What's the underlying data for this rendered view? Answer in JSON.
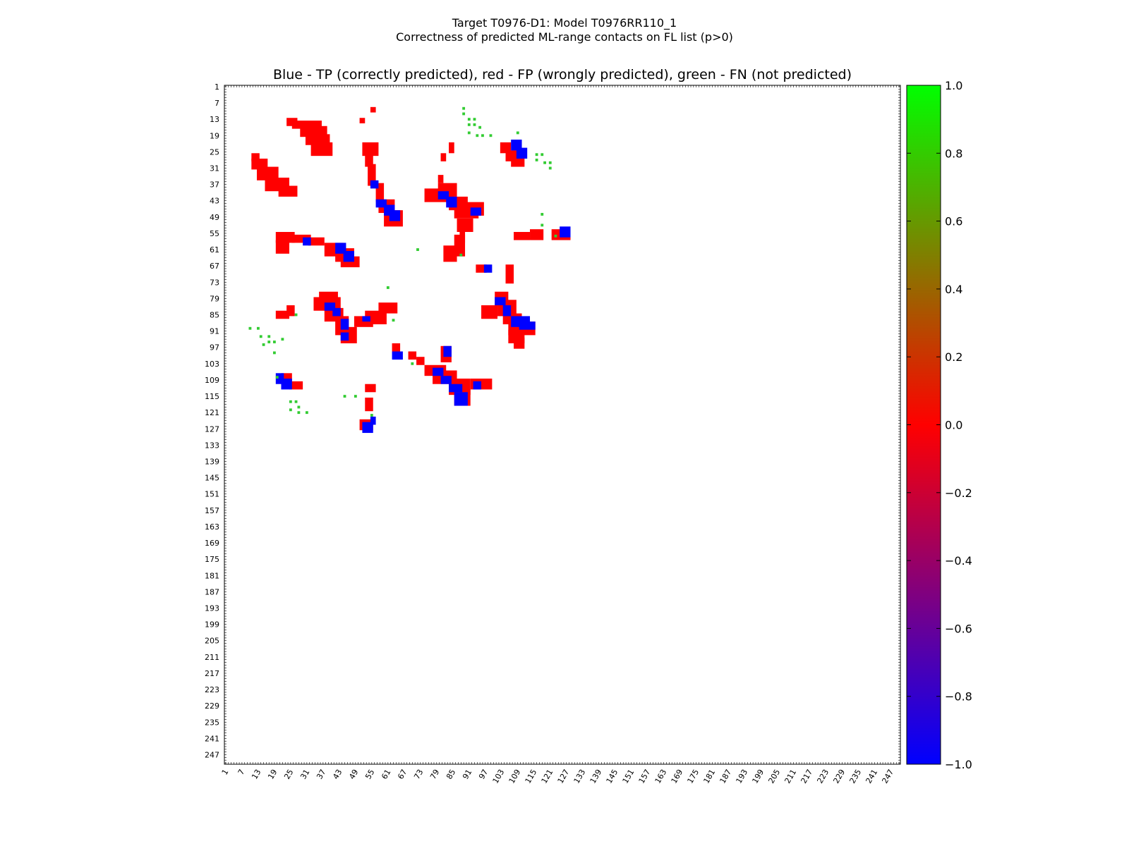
{
  "suptitle_line1": "Target T0976-D1: Model T0976RR110_1",
  "suptitle_line2": "Correctness of predicted ML-range contacts on FL list (p>0)",
  "chart_data": {
    "type": "heatmap",
    "title": "Blue - TP (correctly predicted), red - FP (wrongly predicted), green - FN (not predicted)",
    "xlabel": "",
    "ylabel": "",
    "xlim": [
      1,
      250
    ],
    "ylim": [
      1,
      250
    ],
    "ticks": [
      1,
      7,
      13,
      19,
      25,
      31,
      37,
      43,
      49,
      55,
      61,
      67,
      73,
      79,
      85,
      91,
      97,
      103,
      109,
      115,
      121,
      127,
      133,
      139,
      145,
      151,
      157,
      163,
      169,
      175,
      181,
      187,
      193,
      199,
      205,
      211,
      217,
      223,
      229,
      235,
      241,
      247
    ],
    "colorbar": {
      "range": [
        -1.0,
        1.0
      ],
      "ticks": [
        "1.0",
        "0.8",
        "0.6",
        "0.4",
        "0.2",
        "0.0",
        "−0.2",
        "−0.4",
        "−0.6",
        "−0.8",
        "−1.0"
      ],
      "colors": [
        "#00ff00",
        "#ff0000",
        "#0000ff"
      ]
    },
    "legend": {
      "tp": "#0000ff",
      "fp": "#ff0000",
      "fn": "#33cc33"
    },
    "fp_regions": [
      [
        24,
        13,
        27,
        15
      ],
      [
        26,
        14,
        36,
        16
      ],
      [
        29,
        16,
        38,
        19
      ],
      [
        31,
        19,
        39,
        22
      ],
      [
        33,
        22,
        40,
        26
      ],
      [
        11,
        26,
        13,
        28
      ],
      [
        11,
        28,
        16,
        31
      ],
      [
        13,
        31,
        20,
        35
      ],
      [
        16,
        35,
        24,
        39
      ],
      [
        21,
        38,
        27,
        41
      ],
      [
        52,
        22,
        57,
        26
      ],
      [
        53,
        26,
        55,
        30
      ],
      [
        54,
        30,
        56,
        37
      ],
      [
        57,
        37,
        59,
        43
      ],
      [
        58,
        43,
        63,
        47
      ],
      [
        60,
        47,
        66,
        52
      ],
      [
        80,
        37,
        86,
        41
      ],
      [
        75,
        39,
        85,
        43
      ],
      [
        84,
        42,
        90,
        46
      ],
      [
        86,
        45,
        94,
        49
      ],
      [
        89,
        44,
        96,
        48
      ],
      [
        20,
        55,
        26,
        58
      ],
      [
        20,
        58,
        24,
        62
      ],
      [
        26,
        56,
        32,
        58
      ],
      [
        32,
        57,
        37,
        59
      ],
      [
        38,
        59,
        44,
        63
      ],
      [
        42,
        61,
        48,
        65
      ],
      [
        44,
        64,
        50,
        67
      ],
      [
        88,
        53,
        89,
        58
      ],
      [
        86,
        56,
        89,
        63
      ],
      [
        82,
        60,
        86,
        65
      ],
      [
        87,
        50,
        92,
        54
      ],
      [
        36,
        77,
        42,
        79
      ],
      [
        34,
        79,
        43,
        83
      ],
      [
        38,
        83,
        44,
        87
      ],
      [
        42,
        86,
        46,
        92
      ],
      [
        44,
        90,
        49,
        95
      ],
      [
        49,
        86,
        55,
        89
      ],
      [
        53,
        84,
        60,
        88
      ],
      [
        58,
        81,
        64,
        84
      ],
      [
        20,
        84,
        24,
        86
      ],
      [
        24,
        82,
        26,
        85
      ],
      [
        101,
        77,
        105,
        81
      ],
      [
        102,
        80,
        108,
        85
      ],
      [
        104,
        85,
        110,
        88
      ],
      [
        106,
        88,
        115,
        92
      ],
      [
        106,
        91,
        111,
        95
      ],
      [
        108,
        94,
        111,
        97
      ],
      [
        96,
        82,
        101,
        86
      ],
      [
        75,
        104,
        82,
        107
      ],
      [
        78,
        106,
        86,
        110
      ],
      [
        84,
        109,
        91,
        114
      ],
      [
        86,
        113,
        91,
        118
      ],
      [
        92,
        109,
        99,
        112
      ],
      [
        81,
        97,
        84,
        102
      ],
      [
        22,
        107,
        25,
        109
      ],
      [
        25,
        110,
        29,
        112
      ],
      [
        53,
        111,
        56,
        113
      ],
      [
        53,
        116,
        55,
        120
      ],
      [
        51,
        124,
        55,
        127
      ],
      [
        103,
        22,
        106,
        25
      ],
      [
        105,
        25,
        110,
        28
      ],
      [
        107,
        28,
        111,
        30
      ],
      [
        108,
        55,
        113,
        57
      ],
      [
        114,
        54,
        118,
        57
      ],
      [
        122,
        54,
        128,
        57
      ],
      [
        105,
        67,
        107,
        73
      ],
      [
        94,
        67,
        97,
        69
      ],
      [
        63,
        96,
        65,
        98
      ],
      [
        69,
        99,
        71,
        101
      ],
      [
        72,
        101,
        74,
        103
      ],
      [
        84,
        22,
        85,
        25
      ],
      [
        81,
        26,
        82,
        28
      ],
      [
        80,
        34,
        81,
        36
      ],
      [
        51,
        13,
        52,
        14
      ],
      [
        55,
        9,
        56,
        10
      ]
    ],
    "tp_regions": [
      [
        107,
        21,
        110,
        24
      ],
      [
        109,
        24,
        112,
        27
      ],
      [
        57,
        43,
        60,
        45
      ],
      [
        60,
        45,
        63,
        48
      ],
      [
        62,
        47,
        65,
        50
      ],
      [
        55,
        36,
        57,
        38
      ],
      [
        80,
        40,
        83,
        42
      ],
      [
        83,
        42,
        86,
        45
      ],
      [
        92,
        46,
        95,
        48
      ],
      [
        42,
        59,
        45,
        62
      ],
      [
        45,
        62,
        48,
        65
      ],
      [
        30,
        57,
        32,
        59
      ],
      [
        38,
        81,
        41,
        83
      ],
      [
        41,
        83,
        43,
        85
      ],
      [
        44,
        87,
        46,
        90
      ],
      [
        44,
        92,
        46,
        94
      ],
      [
        52,
        86,
        54,
        87
      ],
      [
        101,
        79,
        104,
        81
      ],
      [
        104,
        82,
        106,
        85
      ],
      [
        107,
        86,
        113,
        89
      ],
      [
        110,
        88,
        115,
        90
      ],
      [
        20,
        107,
        22,
        110
      ],
      [
        22,
        109,
        25,
        112
      ],
      [
        78,
        105,
        81,
        107
      ],
      [
        81,
        108,
        84,
        110
      ],
      [
        84,
        111,
        88,
        113
      ],
      [
        86,
        114,
        90,
        118
      ],
      [
        93,
        110,
        95,
        112
      ],
      [
        52,
        125,
        55,
        128
      ],
      [
        55,
        123,
        56,
        125
      ],
      [
        125,
        53,
        128,
        56
      ],
      [
        97,
        67,
        99,
        69
      ],
      [
        63,
        99,
        66,
        101
      ],
      [
        82,
        97,
        84,
        100
      ]
    ],
    "fn_points": [
      [
        89,
        9
      ],
      [
        89,
        11
      ],
      [
        91,
        13
      ],
      [
        93,
        13
      ],
      [
        91,
        15
      ],
      [
        93,
        15
      ],
      [
        95,
        16
      ],
      [
        91,
        18
      ],
      [
        94,
        19
      ],
      [
        96,
        19
      ],
      [
        99,
        19
      ],
      [
        109,
        18
      ],
      [
        116,
        26
      ],
      [
        118,
        26
      ],
      [
        116,
        28
      ],
      [
        119,
        29
      ],
      [
        121,
        29
      ],
      [
        121,
        31
      ],
      [
        118,
        48
      ],
      [
        118,
        52
      ],
      [
        123,
        56
      ],
      [
        10,
        90
      ],
      [
        13,
        90
      ],
      [
        14,
        93
      ],
      [
        17,
        93
      ],
      [
        17,
        95
      ],
      [
        15,
        96
      ],
      [
        19,
        95
      ],
      [
        22,
        94
      ],
      [
        19,
        99
      ],
      [
        20,
        108
      ],
      [
        25,
        117
      ],
      [
        27,
        117
      ],
      [
        25,
        120
      ],
      [
        28,
        119
      ],
      [
        28,
        121
      ],
      [
        31,
        121
      ],
      [
        45,
        115
      ],
      [
        49,
        115
      ],
      [
        55,
        122
      ],
      [
        72,
        61
      ],
      [
        88,
        63
      ],
      [
        61,
        75
      ],
      [
        63,
        87
      ],
      [
        70,
        103
      ],
      [
        27,
        85
      ]
    ]
  }
}
